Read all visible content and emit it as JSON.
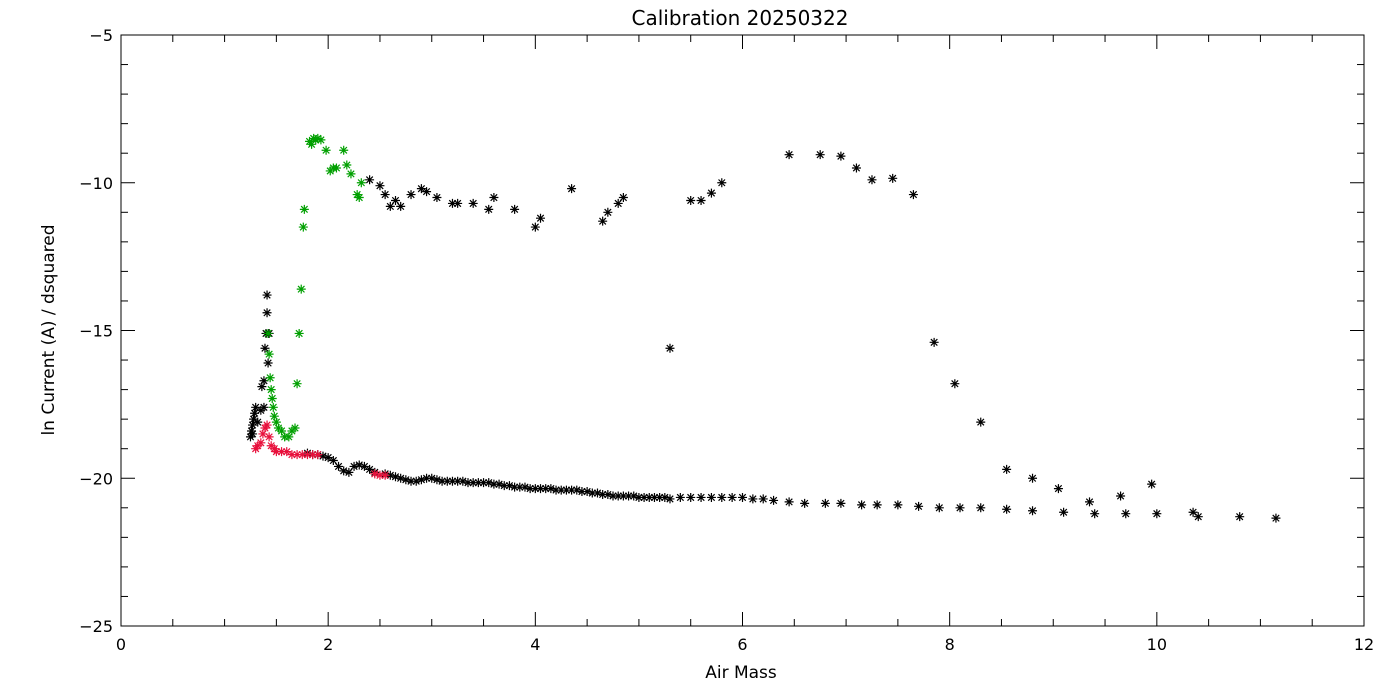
{
  "chart_data": {
    "type": "scatter",
    "title": "Calibration 20250322",
    "xlabel": "Air Mass",
    "ylabel": "ln Current (A) / dsquared",
    "xlim": [
      0,
      12
    ],
    "ylim": [
      -25,
      -5
    ],
    "x_ticks": [
      0,
      2,
      4,
      6,
      8,
      10,
      12
    ],
    "y_ticks": [
      -25,
      -20,
      -15,
      -10,
      -5
    ],
    "marker": "asterisk",
    "grid": false,
    "series": [
      {
        "color": "#000000",
        "points": [
          [
            1.25,
            -18.6
          ],
          [
            1.26,
            -18.4
          ],
          [
            1.27,
            -18.2
          ],
          [
            1.28,
            -18.0
          ],
          [
            1.29,
            -17.8
          ],
          [
            1.3,
            -17.6
          ],
          [
            1.27,
            -18.5
          ],
          [
            1.32,
            -18.1
          ],
          [
            1.35,
            -17.7
          ],
          [
            1.36,
            -16.9
          ],
          [
            1.38,
            -16.7
          ],
          [
            1.39,
            -15.6
          ],
          [
            1.4,
            -15.1
          ],
          [
            1.41,
            -14.4
          ],
          [
            1.41,
            -13.8
          ],
          [
            1.42,
            -16.1
          ],
          [
            1.43,
            -15.1
          ],
          [
            1.38,
            -17.6
          ],
          [
            1.8,
            -19.15
          ],
          [
            1.85,
            -19.2
          ],
          [
            1.9,
            -19.2
          ],
          [
            1.95,
            -19.25
          ],
          [
            2.0,
            -19.3
          ],
          [
            2.05,
            -19.4
          ],
          [
            2.1,
            -19.6
          ],
          [
            2.15,
            -19.75
          ],
          [
            2.2,
            -19.8
          ],
          [
            2.25,
            -19.6
          ],
          [
            2.3,
            -19.55
          ],
          [
            2.35,
            -19.6
          ],
          [
            2.4,
            -19.7
          ],
          [
            2.45,
            -19.8
          ],
          [
            2.55,
            -19.85
          ],
          [
            2.6,
            -19.9
          ],
          [
            2.65,
            -19.95
          ],
          [
            2.7,
            -20.0
          ],
          [
            2.75,
            -20.05
          ],
          [
            2.8,
            -20.1
          ],
          [
            2.85,
            -20.1
          ],
          [
            2.9,
            -20.05
          ],
          [
            2.95,
            -20.0
          ],
          [
            3.0,
            -20.0
          ],
          [
            3.05,
            -20.05
          ],
          [
            3.1,
            -20.1
          ],
          [
            3.15,
            -20.1
          ],
          [
            3.2,
            -20.1
          ],
          [
            3.25,
            -20.1
          ],
          [
            3.3,
            -20.1
          ],
          [
            3.35,
            -20.15
          ],
          [
            3.4,
            -20.15
          ],
          [
            3.45,
            -20.15
          ],
          [
            3.5,
            -20.15
          ],
          [
            3.55,
            -20.15
          ],
          [
            3.6,
            -20.2
          ],
          [
            3.65,
            -20.2
          ],
          [
            3.7,
            -20.25
          ],
          [
            3.75,
            -20.25
          ],
          [
            3.8,
            -20.3
          ],
          [
            3.85,
            -20.3
          ],
          [
            3.9,
            -20.3
          ],
          [
            3.95,
            -20.35
          ],
          [
            4.0,
            -20.35
          ],
          [
            4.05,
            -20.35
          ],
          [
            4.1,
            -20.35
          ],
          [
            4.15,
            -20.35
          ],
          [
            4.2,
            -20.4
          ],
          [
            4.25,
            -20.4
          ],
          [
            4.3,
            -20.4
          ],
          [
            4.35,
            -20.4
          ],
          [
            4.4,
            -20.4
          ],
          [
            4.45,
            -20.45
          ],
          [
            4.5,
            -20.45
          ],
          [
            4.55,
            -20.5
          ],
          [
            4.6,
            -20.5
          ],
          [
            4.65,
            -20.55
          ],
          [
            4.7,
            -20.55
          ],
          [
            4.75,
            -20.6
          ],
          [
            4.8,
            -20.6
          ],
          [
            4.85,
            -20.6
          ],
          [
            4.9,
            -20.6
          ],
          [
            4.95,
            -20.6
          ],
          [
            5.0,
            -20.65
          ],
          [
            5.05,
            -20.65
          ],
          [
            5.1,
            -20.65
          ],
          [
            5.15,
            -20.65
          ],
          [
            5.2,
            -20.65
          ],
          [
            5.25,
            -20.65
          ],
          [
            5.3,
            -20.7
          ],
          [
            5.4,
            -20.65
          ],
          [
            5.5,
            -20.65
          ],
          [
            5.6,
            -20.65
          ],
          [
            5.7,
            -20.65
          ],
          [
            5.8,
            -20.65
          ],
          [
            5.9,
            -20.65
          ],
          [
            6.0,
            -20.65
          ],
          [
            6.1,
            -20.7
          ],
          [
            6.2,
            -20.7
          ],
          [
            6.3,
            -20.75
          ],
          [
            6.45,
            -20.8
          ],
          [
            6.6,
            -20.85
          ],
          [
            6.8,
            -20.85
          ],
          [
            6.95,
            -20.85
          ],
          [
            7.15,
            -20.9
          ],
          [
            7.3,
            -20.9
          ],
          [
            7.5,
            -20.9
          ],
          [
            7.7,
            -20.95
          ],
          [
            7.9,
            -21.0
          ],
          [
            8.1,
            -21.0
          ],
          [
            8.3,
            -21.0
          ],
          [
            8.55,
            -21.05
          ],
          [
            8.8,
            -21.1
          ],
          [
            9.1,
            -21.15
          ],
          [
            9.4,
            -21.2
          ],
          [
            9.7,
            -21.2
          ],
          [
            10.0,
            -21.2
          ],
          [
            10.4,
            -21.3
          ],
          [
            10.8,
            -21.3
          ],
          [
            11.15,
            -21.35
          ],
          [
            2.4,
            -9.9
          ],
          [
            2.5,
            -10.1
          ],
          [
            2.55,
            -10.4
          ],
          [
            2.6,
            -10.8
          ],
          [
            2.7,
            -10.8
          ],
          [
            2.65,
            -10.6
          ],
          [
            2.8,
            -10.4
          ],
          [
            2.9,
            -10.2
          ],
          [
            2.95,
            -10.3
          ],
          [
            3.05,
            -10.5
          ],
          [
            3.2,
            -10.7
          ],
          [
            3.25,
            -10.7
          ],
          [
            3.4,
            -10.7
          ],
          [
            3.55,
            -10.9
          ],
          [
            3.6,
            -10.5
          ],
          [
            3.8,
            -10.9
          ],
          [
            4.0,
            -11.5
          ],
          [
            4.05,
            -11.2
          ],
          [
            4.35,
            -10.2
          ],
          [
            4.65,
            -11.3
          ],
          [
            4.7,
            -11.0
          ],
          [
            4.8,
            -10.7
          ],
          [
            4.85,
            -10.5
          ],
          [
            5.3,
            -15.6
          ],
          [
            5.5,
            -10.6
          ],
          [
            5.6,
            -10.6
          ],
          [
            5.7,
            -10.35
          ],
          [
            5.8,
            -10.0
          ],
          [
            6.45,
            -9.05
          ],
          [
            6.75,
            -9.05
          ],
          [
            6.95,
            -9.1
          ],
          [
            7.1,
            -9.5
          ],
          [
            7.25,
            -9.9
          ],
          [
            7.45,
            -9.85
          ],
          [
            7.65,
            -10.4
          ],
          [
            7.85,
            -15.4
          ],
          [
            8.05,
            -16.8
          ],
          [
            8.3,
            -18.1
          ],
          [
            8.55,
            -19.7
          ],
          [
            8.8,
            -20.0
          ],
          [
            9.05,
            -20.35
          ],
          [
            9.35,
            -20.8
          ],
          [
            9.65,
            -20.6
          ],
          [
            9.95,
            -20.2
          ],
          [
            10.35,
            -21.15
          ]
        ]
      },
      {
        "color": "#00a000",
        "points": [
          [
            1.42,
            -15.1
          ],
          [
            1.43,
            -15.8
          ],
          [
            1.44,
            -16.6
          ],
          [
            1.45,
            -17.0
          ],
          [
            1.46,
            -17.3
          ],
          [
            1.47,
            -17.6
          ],
          [
            1.48,
            -17.9
          ],
          [
            1.5,
            -18.1
          ],
          [
            1.52,
            -18.3
          ],
          [
            1.55,
            -18.4
          ],
          [
            1.58,
            -18.6
          ],
          [
            1.62,
            -18.6
          ],
          [
            1.65,
            -18.4
          ],
          [
            1.68,
            -18.3
          ],
          [
            1.7,
            -16.8
          ],
          [
            1.72,
            -15.1
          ],
          [
            1.74,
            -13.6
          ],
          [
            1.76,
            -11.5
          ],
          [
            1.77,
            -10.9
          ],
          [
            1.82,
            -8.6
          ],
          [
            1.84,
            -8.7
          ],
          [
            1.86,
            -8.5
          ],
          [
            1.88,
            -8.55
          ],
          [
            1.9,
            -8.5
          ],
          [
            1.93,
            -8.55
          ],
          [
            1.98,
            -8.9
          ],
          [
            2.02,
            -9.6
          ],
          [
            2.05,
            -9.5
          ],
          [
            2.08,
            -9.5
          ],
          [
            2.15,
            -8.9
          ],
          [
            2.18,
            -9.4
          ],
          [
            2.22,
            -9.7
          ],
          [
            2.28,
            -10.4
          ],
          [
            2.3,
            -10.5
          ],
          [
            2.32,
            -10.0
          ]
        ]
      },
      {
        "color": "#e8103c",
        "points": [
          [
            1.3,
            -19.0
          ],
          [
            1.32,
            -18.9
          ],
          [
            1.35,
            -18.8
          ],
          [
            1.37,
            -18.5
          ],
          [
            1.39,
            -18.3
          ],
          [
            1.41,
            -18.2
          ],
          [
            1.43,
            -18.6
          ],
          [
            1.45,
            -18.9
          ],
          [
            1.48,
            -19.0
          ],
          [
            1.5,
            -19.1
          ],
          [
            1.55,
            -19.1
          ],
          [
            1.6,
            -19.1
          ],
          [
            1.65,
            -19.2
          ],
          [
            1.7,
            -19.2
          ],
          [
            1.75,
            -19.2
          ],
          [
            1.8,
            -19.2
          ],
          [
            1.85,
            -19.2
          ],
          [
            1.9,
            -19.2
          ],
          [
            2.45,
            -19.85
          ],
          [
            2.5,
            -19.9
          ],
          [
            2.55,
            -19.9
          ]
        ]
      }
    ]
  }
}
